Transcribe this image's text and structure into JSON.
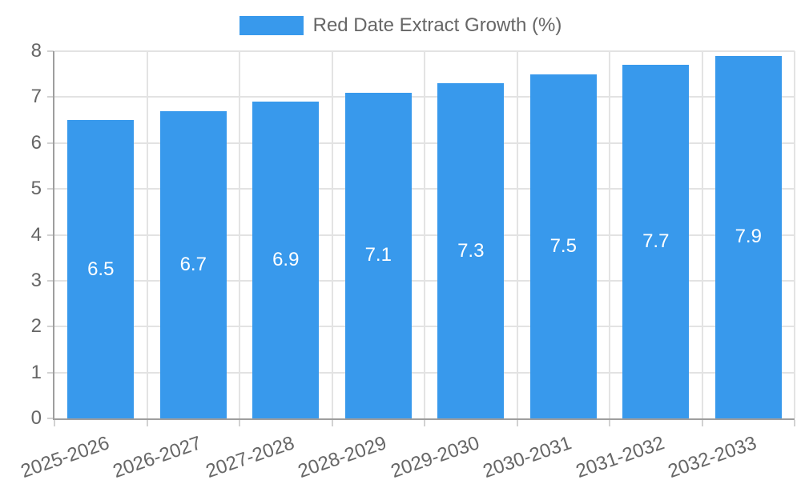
{
  "colors": {
    "bar": "#3899EC",
    "grid": "#E3E3E3",
    "tick": "#D2D2D2",
    "axis": "#9E9E9E",
    "text": "#666666",
    "value_label": "#FFFFFF",
    "background": "#FFFFFF"
  },
  "legend": {
    "label": "Red Date Extract Growth (%)"
  },
  "chart_data": {
    "type": "bar",
    "title": "",
    "xlabel": "",
    "ylabel": "",
    "categories": [
      "2025-2026",
      "2026-2027",
      "2027-2028",
      "2028-2029",
      "2029-2030",
      "2030-2031",
      "2031-2032",
      "2032-2033"
    ],
    "series": [
      {
        "name": "Red Date Extract Growth (%)",
        "values": [
          6.5,
          6.7,
          6.9,
          7.1,
          7.3,
          7.5,
          7.7,
          7.9
        ]
      }
    ],
    "value_labels": [
      "6.5",
      "6.7",
      "6.9",
      "7.1",
      "7.3",
      "7.5",
      "7.7",
      "7.9"
    ],
    "ylim": [
      0,
      8
    ],
    "yticks": [
      0,
      1,
      2,
      3,
      4,
      5,
      6,
      7,
      8
    ],
    "grid": true,
    "legend_position": "top",
    "x_label_rotation_deg": -19
  }
}
